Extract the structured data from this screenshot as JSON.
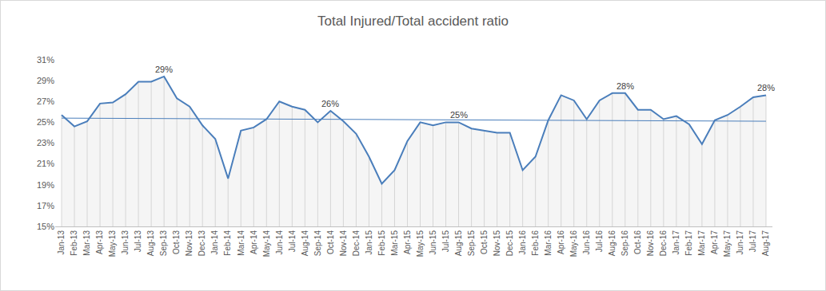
{
  "chart_data": {
    "type": "line",
    "title": "Total Injured/Total accident ratio",
    "categories": [
      "Jan-13",
      "Feb-13",
      "Mar-13",
      "Apr-13",
      "May-13",
      "Jun-13",
      "Jul-13",
      "Aug-13",
      "Sep-13",
      "Oct-13",
      "Nov-13",
      "Dec-13",
      "Jan-14",
      "Feb-14",
      "Mar-14",
      "Apr-14",
      "May-14",
      "Jun-14",
      "Jul-14",
      "Aug-14",
      "Sep-14",
      "Oct-14",
      "Nov-14",
      "Dec-14",
      "Jan-15",
      "Feb-15",
      "Mar-15",
      "Apr-15",
      "May-15",
      "Jun-15",
      "Jul-15",
      "Aug-15",
      "Sep-15",
      "Oct-15",
      "Nov-15",
      "Dec-15",
      "Jan-16",
      "Feb-16",
      "Mar-16",
      "Apr-16",
      "May-16",
      "Jun-16",
      "Jul-16",
      "Aug-16",
      "Sep-16",
      "Oct-16",
      "Nov-16",
      "Dec-16",
      "Jan-17",
      "Feb-17",
      "Mar-17",
      "Apr-17",
      "May-17",
      "Jun-17",
      "Jul-17",
      "Aug-17"
    ],
    "series": [
      {
        "color": "#4a7ebb",
        "values": [
          25.7,
          24.6,
          25.1,
          26.8,
          26.9,
          27.7,
          28.9,
          28.9,
          29.4,
          27.3,
          26.5,
          24.7,
          23.4,
          19.6,
          24.2,
          24.5,
          25.3,
          27.0,
          26.5,
          26.2,
          25.0,
          26.1,
          25.1,
          23.9,
          21.7,
          19.1,
          20.4,
          23.2,
          25.0,
          24.7,
          25.0,
          25.0,
          24.4,
          24.2,
          24.0,
          24.0,
          20.4,
          21.7,
          25.2,
          27.6,
          27.1,
          25.3,
          27.1,
          27.8,
          27.8,
          26.2,
          26.2,
          25.3,
          25.6,
          24.8,
          22.9,
          25.2,
          25.7,
          26.5,
          27.4,
          27.6
        ]
      },
      {
        "color": "#4a7ebb",
        "values": [
          25.4,
          null,
          null,
          null,
          null,
          null,
          null,
          null,
          null,
          null,
          null,
          null,
          null,
          null,
          null,
          null,
          null,
          null,
          null,
          null,
          null,
          null,
          null,
          null,
          null,
          null,
          null,
          null,
          null,
          null,
          null,
          null,
          null,
          null,
          null,
          null,
          null,
          null,
          null,
          null,
          null,
          null,
          null,
          null,
          null,
          null,
          null,
          null,
          null,
          null,
          null,
          null,
          null,
          null,
          null,
          25.1
        ]
      }
    ],
    "annotations": [
      {
        "category": "Sep-13",
        "text": "29%"
      },
      {
        "category": "Oct-14",
        "text": "26%"
      },
      {
        "category": "Aug-15",
        "text": "25%"
      },
      {
        "category": "Sep-16",
        "text": "28%"
      },
      {
        "category": "Aug-17",
        "text": "28%"
      }
    ],
    "ylim": [
      15,
      31
    ],
    "yticks": [
      {
        "value": 15,
        "label": "15%"
      },
      {
        "value": 17,
        "label": "17%"
      },
      {
        "value": 19,
        "label": "19%"
      },
      {
        "value": 21,
        "label": "21%"
      },
      {
        "value": 23,
        "label": "23%"
      },
      {
        "value": 25,
        "label": "25%"
      },
      {
        "value": 27,
        "label": "27%"
      },
      {
        "value": 29,
        "label": "29%"
      },
      {
        "value": 31,
        "label": "31%"
      }
    ],
    "grid": false
  }
}
